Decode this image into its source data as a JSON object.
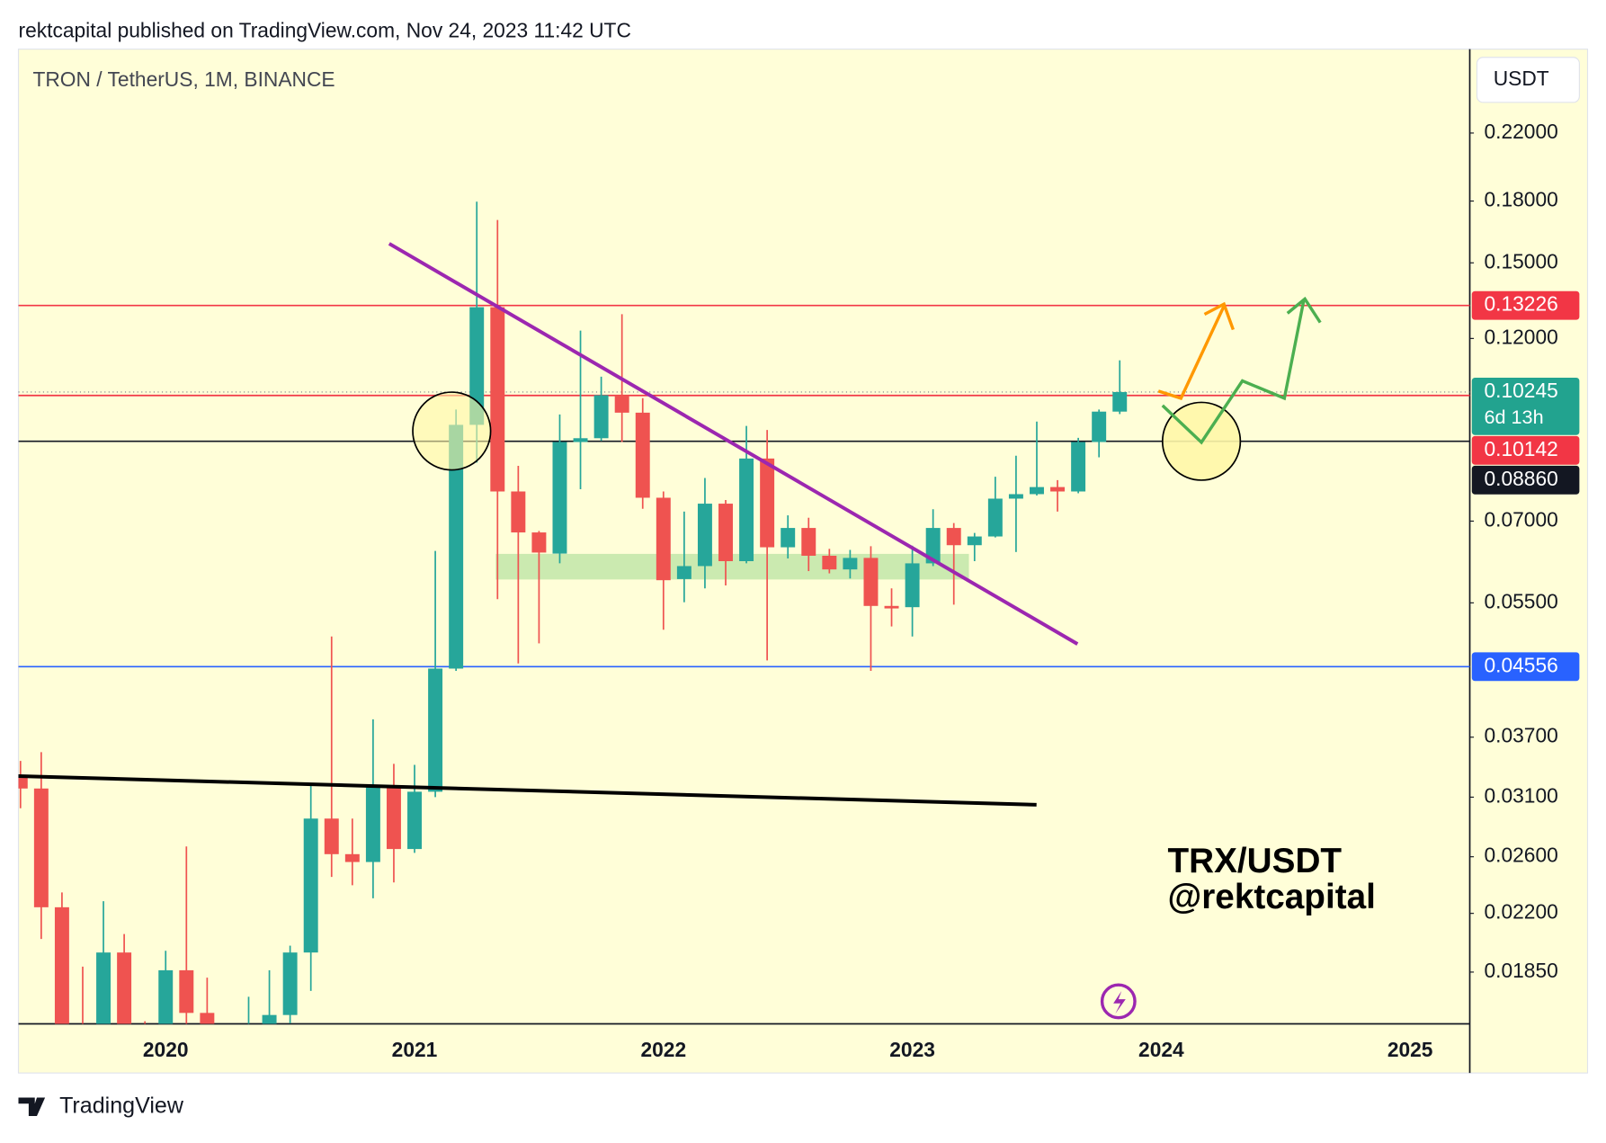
{
  "header": "rektcapital published on TradingView.com, Nov 24, 2023 11:42 UTC",
  "footer": "TradingView",
  "chart_data": {
    "type": "candlestick",
    "title": "TRON / TetherUS, 1M, BINANCE",
    "y_axis_label": "USDT",
    "log_scale": true,
    "up_color": "#26a69a",
    "down_color": "#ef5350",
    "categories": [
      null,
      null,
      null,
      null,
      null,
      null,
      null,
      "2020",
      null,
      null,
      null,
      null,
      null,
      null,
      null,
      null,
      null,
      null,
      null,
      "2021",
      null,
      null,
      null,
      null,
      null,
      null,
      null,
      null,
      null,
      null,
      null,
      "2022",
      null,
      null,
      null,
      null,
      null,
      null,
      null,
      null,
      null,
      null,
      null,
      "2023",
      null,
      null,
      null,
      null,
      null,
      null,
      null,
      null,
      null,
      null,
      null,
      "2024",
      null,
      null,
      null,
      null,
      null,
      null,
      null,
      null,
      null,
      null,
      null,
      "2025",
      null,
      null,
      null
    ],
    "open": [
      0.033,
      0.0318,
      0.0224,
      0.0155,
      0.014,
      0.0196,
      0.015,
      0.0135,
      0.0186,
      0.0164,
      0.013,
      0.015,
      0.0155,
      0.0163,
      0.0196,
      0.0291,
      0.0262,
      0.0256,
      0.0321,
      0.0266,
      0.0315,
      0.0453,
      0.093,
      0.1316,
      0.0764,
      0.0677,
      0.0636,
      0.0884,
      0.0894,
      0.1015,
      0.0964,
      0.075,
      0.059,
      0.0613,
      0.0737,
      0.0622,
      0.0842,
      0.0648,
      0.0686,
      0.0632,
      0.0607,
      0.0628,
      0.0545,
      0.0543,
      0.0618,
      0.0686,
      0.0652,
      0.0669,
      0.0748,
      0.0758,
      0.0774,
      0.0764,
      0.0884,
      0.0967,
      null,
      null,
      null,
      null,
      null,
      null,
      null,
      null,
      null,
      null,
      null,
      null,
      null,
      null,
      null,
      null,
      null
    ],
    "high": [
      0.0345,
      0.0354,
      0.0234,
      0.0188,
      0.0228,
      0.0207,
      0.016,
      0.0197,
      0.0268,
      0.0182,
      0.0158,
      0.0172,
      0.0186,
      0.02,
      0.0323,
      0.0498,
      0.0291,
      0.039,
      0.0342,
      0.0341,
      0.0641,
      0.0973,
      0.1797,
      0.1702,
      0.0824,
      0.068,
      0.0959,
      0.1228,
      0.1072,
      0.1289,
      0.1006,
      0.0764,
      0.072,
      0.0795,
      0.0745,
      0.0927,
      0.0916,
      0.0712,
      0.0707,
      0.0645,
      0.0643,
      0.065,
      0.0574,
      0.0651,
      0.0725,
      0.0696,
      0.0676,
      0.0798,
      0.0849,
      0.0939,
      0.079,
      0.0895,
      0.0973,
      0.1125,
      null,
      null,
      null,
      null,
      null,
      null,
      null,
      null,
      null,
      null,
      null,
      null,
      null,
      null,
      null,
      null,
      null
    ],
    "low": [
      0.03,
      0.0204,
      0.0145,
      0.013,
      0.013,
      0.014,
      0.0125,
      0.013,
      0.0155,
      0.01,
      0.0125,
      0.0145,
      0.015,
      0.0159,
      0.0175,
      0.0245,
      0.0239,
      0.023,
      0.0241,
      0.0263,
      0.031,
      0.045,
      0.0832,
      0.0556,
      0.046,
      0.0488,
      0.0618,
      0.0769,
      0.0887,
      0.0884,
      0.0726,
      0.0508,
      0.0551,
      0.0574,
      0.0579,
      0.0618,
      0.0464,
      0.0627,
      0.0604,
      0.06,
      0.0591,
      0.045,
      0.0513,
      0.0498,
      0.0613,
      0.0547,
      0.0622,
      0.0667,
      0.0639,
      0.0755,
      0.072,
      0.076,
      0.0845,
      0.096,
      null,
      null,
      null,
      null,
      null,
      null,
      null,
      null,
      null,
      null,
      null,
      null,
      null,
      null,
      null,
      null,
      null
    ],
    "close": [
      0.0318,
      0.0224,
      0.0155,
      0.014,
      0.0196,
      0.015,
      0.0135,
      0.0186,
      0.0164,
      0.013,
      0.015,
      0.0155,
      0.0163,
      0.0196,
      0.0291,
      0.0262,
      0.0256,
      0.0321,
      0.0266,
      0.0315,
      0.0453,
      0.093,
      0.1316,
      0.0764,
      0.0677,
      0.0638,
      0.0884,
      0.0894,
      0.1015,
      0.0964,
      0.075,
      0.0588,
      0.0613,
      0.0737,
      0.0622,
      0.0842,
      0.0648,
      0.0686,
      0.0632,
      0.0607,
      0.0628,
      0.0545,
      0.0541,
      0.0618,
      0.0686,
      0.0652,
      0.0669,
      0.0748,
      0.0758,
      0.0774,
      0.0764,
      0.0884,
      0.0967,
      0.10245,
      null,
      null,
      null,
      null,
      null,
      null,
      null,
      null,
      null,
      null,
      null,
      null,
      null,
      null,
      null,
      null,
      null
    ],
    "ylim": [
      0.01588,
      0.2818
    ],
    "yticks": [
      {
        "value": 0.0185,
        "label": "0.01850"
      },
      {
        "value": 0.022,
        "label": "0.02200"
      },
      {
        "value": 0.026,
        "label": "0.02600"
      },
      {
        "value": 0.031,
        "label": "0.03100"
      },
      {
        "value": 0.037,
        "label": "0.03700"
      },
      {
        "value": 0.055,
        "label": "0.05500"
      },
      {
        "value": 0.07,
        "label": "0.07000"
      },
      {
        "value": 0.12,
        "label": "0.12000"
      },
      {
        "value": 0.15,
        "label": "0.15000"
      },
      {
        "value": 0.18,
        "label": "0.18000"
      },
      {
        "value": 0.22,
        "label": "0.22000"
      }
    ],
    "price_lines": [
      {
        "value": 0.13226,
        "color": "#f23645"
      },
      {
        "value": 0.10142,
        "color": "#f23645"
      },
      {
        "value": 0.0886,
        "label": "0.08860",
        "color": "#131722"
      },
      {
        "value": 0.04556,
        "color": "#2962ff"
      }
    ],
    "current_price_color": "#22a38f",
    "countdown": "6d 13h",
    "annotation": [
      "TRX/USDT",
      "@rektcapital"
    ]
  }
}
